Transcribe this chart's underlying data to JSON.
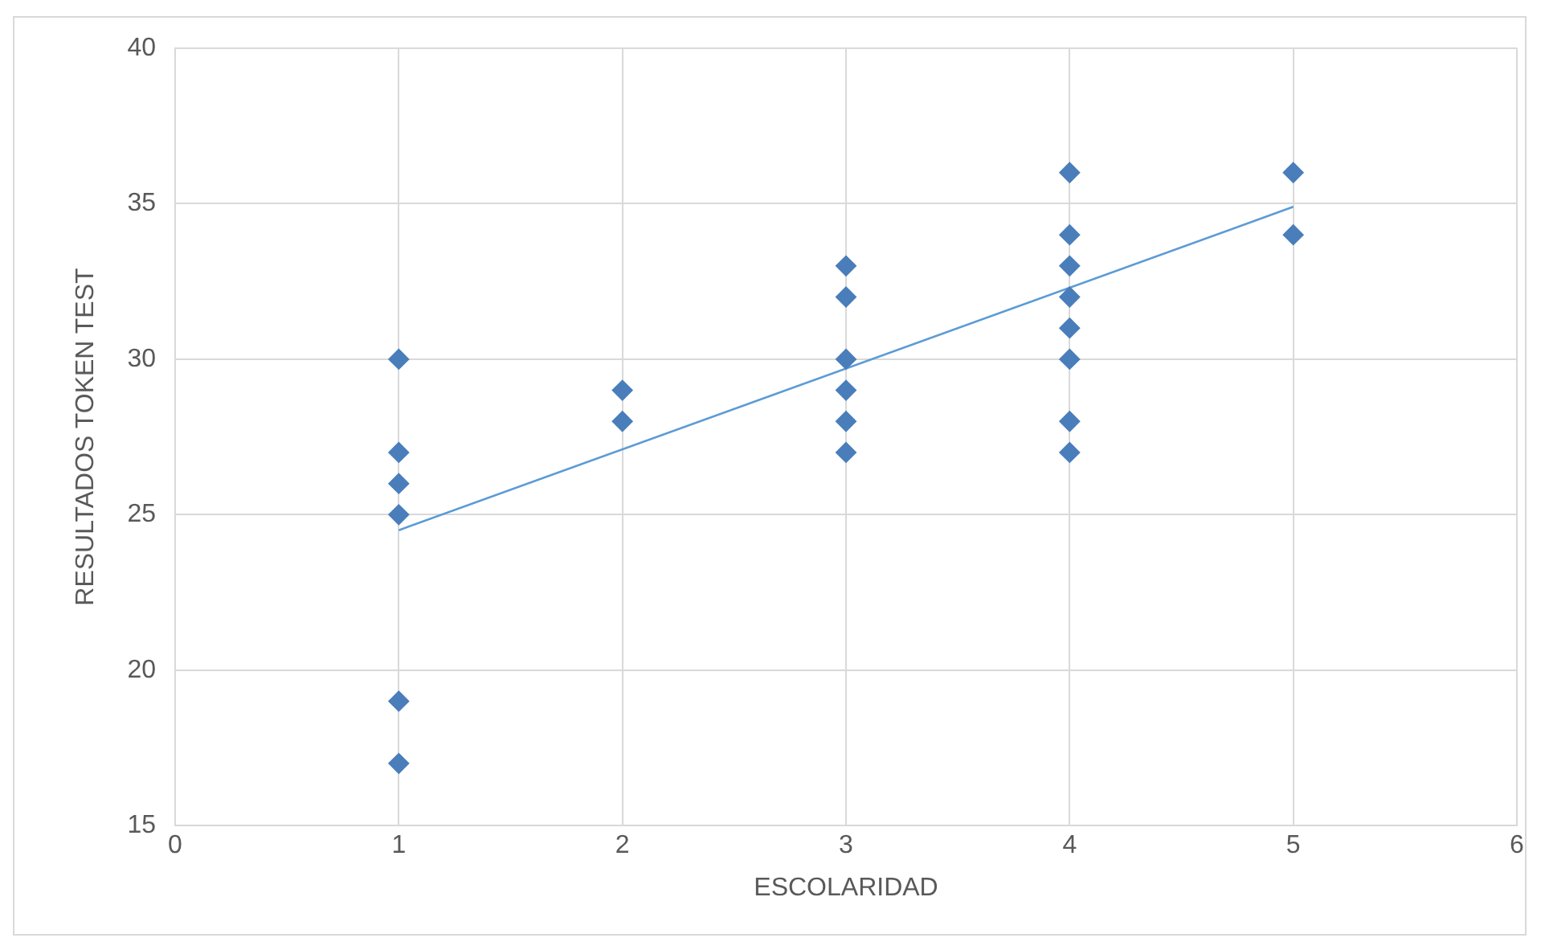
{
  "chart_data": {
    "type": "scatter",
    "xlabel": "ESCOLARIDAD",
    "ylabel": "RESULTADOS TOKEN TEST",
    "xlim": [
      0,
      6
    ],
    "xticks": [
      0,
      1,
      2,
      3,
      4,
      5,
      6
    ],
    "ylim": [
      15,
      40
    ],
    "yticks": [
      15,
      20,
      25,
      30,
      35,
      40
    ],
    "grid": true,
    "legend": false,
    "marker": "diamond",
    "series": [
      {
        "type": "scatter",
        "color": "#4a7ebb",
        "x": [
          1,
          1,
          1,
          1,
          1,
          1,
          2,
          2,
          3,
          3,
          3,
          3,
          3,
          3,
          4,
          4,
          4,
          4,
          4,
          4,
          4,
          4,
          5,
          5
        ],
        "values": [
          30,
          27,
          26,
          25,
          19,
          17,
          29,
          28,
          33,
          32,
          30,
          29,
          28,
          27,
          36,
          34,
          33,
          32,
          31,
          30,
          28,
          27,
          36,
          34
        ]
      },
      {
        "type": "line",
        "color": "#5b9bd5",
        "marker": "none",
        "x": [
          1,
          5
        ],
        "values": [
          24.5,
          34.9
        ]
      }
    ]
  }
}
